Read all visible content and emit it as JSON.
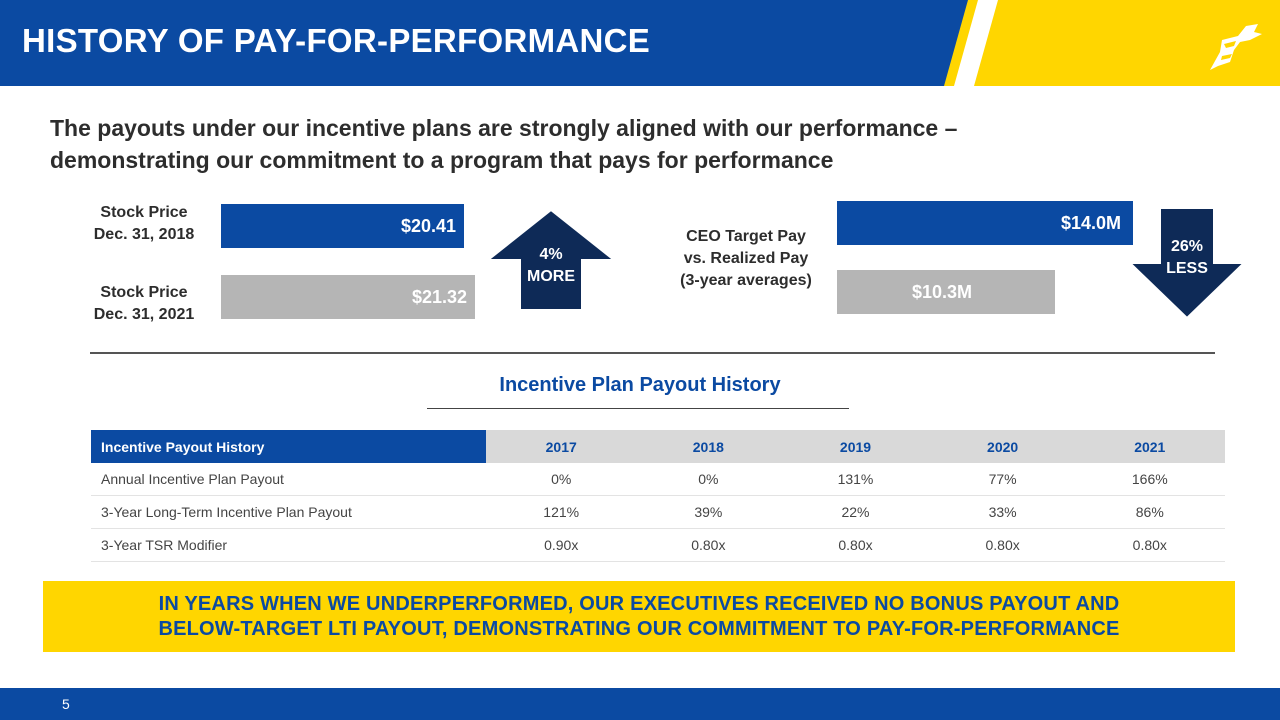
{
  "header": {
    "title": "HISTORY OF PAY-FOR-PERFORMANCE",
    "logo_icon": "wingfoot-logo-icon"
  },
  "subtitle": {
    "line1": "The payouts under our incentive plans are  strongly aligned with our performance –",
    "line2": "demonstrating our commitment to a program that pays for performance"
  },
  "stock": {
    "label_2018_line1": "Stock Price",
    "label_2018_line2": "Dec. 31, 2018",
    "value_2018": "$20.41",
    "label_2021_line1": "Stock Price",
    "label_2021_line2": "Dec. 31, 2021",
    "value_2021": "$21.32",
    "change_line1": "4%",
    "change_line2": "MORE"
  },
  "ceo_pay": {
    "label_line1": "CEO Target Pay",
    "label_line2": "vs. Realized Pay",
    "label_line3": "(3-year averages)",
    "target_value": "$14.0M",
    "realized_value": "$10.3M",
    "change_line1": "26%",
    "change_line2": "LESS"
  },
  "table": {
    "title": "Incentive Plan Payout History",
    "headers": [
      "Incentive Payout History",
      "2017",
      "2018",
      "2019",
      "2020",
      "2021"
    ],
    "rows": [
      [
        "Annual Incentive Plan Payout",
        "0%",
        "0%",
        "131%",
        "77%",
        "166%"
      ],
      [
        "3-Year Long-Term Incentive Plan Payout",
        "121%",
        "39%",
        "22%",
        "33%",
        "86%"
      ],
      [
        "3-Year TSR Modifier",
        "0.90x",
        "0.80x",
        "0.80x",
        "0.80x",
        "0.80x"
      ]
    ]
  },
  "banner": {
    "line1": "IN YEARS WHEN WE UNDERPERFORMED, OUR EXECUTIVES RECEIVED NO BONUS PAYOUT AND",
    "line2": "BELOW-TARGET LTI PAYOUT, DEMONSTRATING OUR COMMITMENT TO PAY-FOR-PERFORMANCE"
  },
  "footer": {
    "page_number": "5"
  },
  "colors": {
    "brand_blue": "#0B4AA2",
    "brand_yellow": "#FFD600",
    "arrow_navy": "#0E2A57",
    "bar_gray": "#B5B5B5"
  }
}
